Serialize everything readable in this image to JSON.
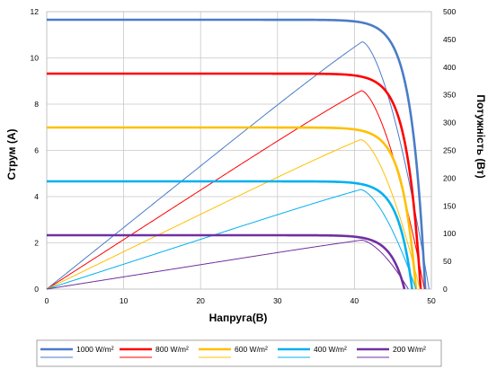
{
  "chart_data": {
    "type": "line",
    "xlabel": "Напруга(В)",
    "ylabel": "Струм (А)",
    "y2label": "Потужність (Вт)",
    "xlim": [
      0,
      50
    ],
    "ylim": [
      0,
      12
    ],
    "y2lim": [
      0,
      500
    ],
    "x_ticks": [
      "0",
      "10",
      "20",
      "30",
      "40",
      "50"
    ],
    "y_ticks": [
      "0",
      "2",
      "4",
      "6",
      "8",
      "10",
      "12"
    ],
    "y2_ticks": [
      "0",
      "50",
      "100",
      "150",
      "200",
      "250",
      "300",
      "350",
      "400",
      "450",
      "500"
    ],
    "grid": true,
    "legend_position": "bottom",
    "series": [
      {
        "name": "1000 W/m²",
        "color": "#4a7cc8",
        "isc": 11.65,
        "voc": 49.2,
        "vmp": 41.0,
        "pmax": 455
      },
      {
        "name": "800 W/m²",
        "color": "#ff0000",
        "isc": 9.32,
        "voc": 48.6,
        "vmp": 40.9,
        "pmax": 365
      },
      {
        "name": "600 W/m²",
        "color": "#ffc000",
        "isc": 6.99,
        "voc": 48.0,
        "vmp": 40.8,
        "pmax": 275
      },
      {
        "name": "400 W/m²",
        "color": "#00b0f0",
        "isc": 4.66,
        "voc": 47.5,
        "vmp": 40.8,
        "pmax": 183
      },
      {
        "name": "200 W/m²",
        "color": "#7030a0",
        "isc": 2.33,
        "voc": 46.5,
        "vmp": 40.9,
        "pmax": 90
      }
    ]
  }
}
